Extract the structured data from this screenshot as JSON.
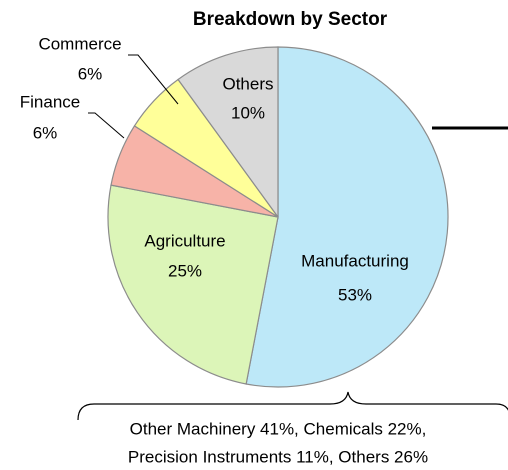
{
  "chart_data": {
    "type": "pie",
    "title": "Breakdown by Sector",
    "categories": [
      "Manufacturing",
      "Agriculture",
      "Finance",
      "Commerce",
      "Others"
    ],
    "values": [
      53,
      25,
      6,
      6,
      10
    ],
    "value_labels": [
      "53%",
      "25%",
      "6%",
      "6%",
      "10%"
    ],
    "colors": [
      "#bde8f8",
      "#dcf5b8",
      "#f7b3a8",
      "#ffff99",
      "#d9d9d9"
    ],
    "annotation": [
      "Other Machinery 41%, Chemicals 22%,",
      "Precision Instruments 11%, Others 26%"
    ]
  }
}
